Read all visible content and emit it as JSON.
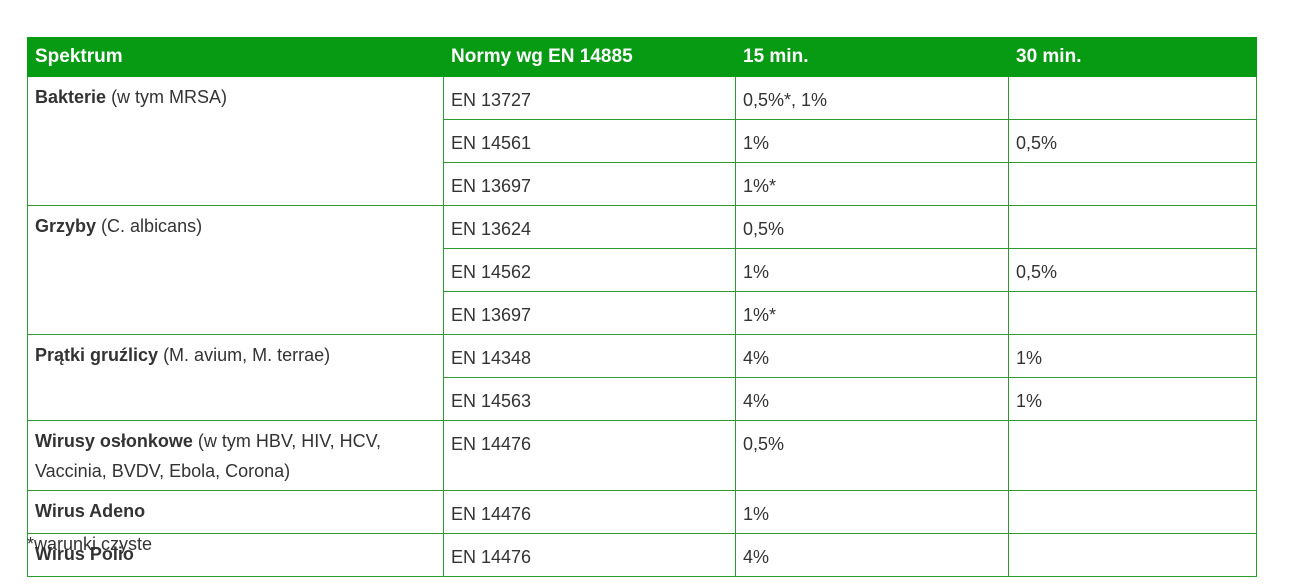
{
  "header": [
    "Spektrum",
    "Normy wg EN 14885",
    "15 min.",
    "30 min."
  ],
  "groups": [
    {
      "name": "Bakterie",
      "note": "(w tym MRSA)",
      "rows": [
        [
          "EN 13727",
          "0,5%*, 1%",
          null
        ],
        [
          "EN 14561",
          "1%",
          "0,5%"
        ],
        [
          "EN 13697",
          "1%*",
          null
        ]
      ]
    },
    {
      "name": "Grzyby",
      "note": "(C. albicans)",
      "rows": [
        [
          "EN 13624",
          "0,5%",
          null
        ],
        [
          "EN 14562",
          "1%",
          "0,5%"
        ],
        [
          "EN 13697",
          "1%*",
          null
        ]
      ]
    },
    {
      "name": "Prątki gruźlicy",
      "note": "(M. avium, M. terrae)",
      "rows": [
        [
          "EN 14348",
          "4%",
          "1%"
        ],
        [
          "EN 14563",
          "4%",
          "1%"
        ]
      ]
    },
    {
      "name": "Wirusy osłonkowe",
      "note": "(w tym HBV, HIV, HCV, Vaccinia, BVDV, Ebola, Corona)",
      "rows": [
        [
          "EN 14476",
          "0,5%",
          null
        ]
      ]
    },
    {
      "name": "Wirus Adeno",
      "rows": [
        [
          "EN 14476",
          "1%",
          null
        ]
      ]
    },
    {
      "name": "Wirus Polio",
      "rows": [
        [
          "EN 14476",
          "4%",
          null
        ]
      ]
    }
  ],
  "footnote": "*warunki czyste"
}
